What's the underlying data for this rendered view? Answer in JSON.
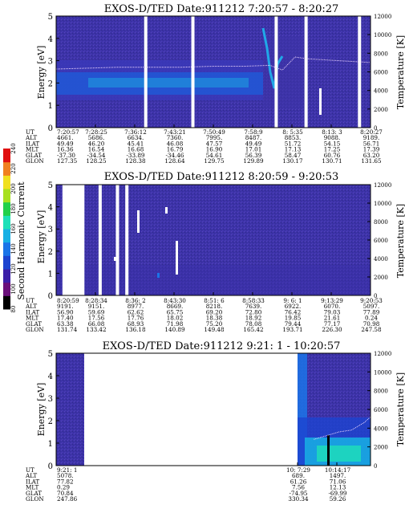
{
  "chart_data": [
    {
      "type": "heatmap",
      "title": "EXOS-D/TED   Date:911212  7:20:57 - 8:20:27",
      "ylabel": "Energy [eV]",
      "y2label": "Temperature [K]",
      "ylim": [
        0,
        5
      ],
      "y2lim": [
        0,
        12000
      ],
      "y_ticks": [
        "0",
        "1",
        "2",
        "3",
        "4",
        "5"
      ],
      "y2_ticks": [
        "0",
        "2000",
        "4000",
        "6000",
        "8000",
        "10000",
        "12000"
      ],
      "x_ticks": [
        "7:20:57",
        "7:28:25",
        "7:36:12",
        "7:43:21",
        "7:50:49",
        "7:58:9",
        "8: 5:35",
        "8:13: 3",
        "8:20:27"
      ],
      "orbit_labels": [
        "UT",
        "ALT",
        "ILAT",
        "MLT",
        "GLAT",
        "GLON"
      ],
      "orbit_columns": [
        [
          "7:20:57",
          "4661.",
          "49.49",
          "16.36",
          "-37.30",
          "127.35"
        ],
        [
          "7:28:25",
          "5686.",
          "46.20",
          "16.54",
          "-34.54",
          "128.25"
        ],
        [
          "7:36:12",
          "6634.",
          "45.41",
          "16.68",
          "-33.89",
          "128.38"
        ],
        [
          "7:43:21",
          "7360.",
          "46.08",
          "16.79",
          "-34.46",
          "128.64"
        ],
        [
          "7:50:49",
          "7995.",
          "47.57",
          "16.90",
          "54.61",
          "129.75"
        ],
        [
          "7:58:9",
          "8487.",
          "49.49",
          "17.01",
          "56.39",
          "129.89"
        ],
        [
          "8: 5:35",
          "8853.",
          "51.72",
          "17.13",
          "58.47",
          "130.17"
        ],
        [
          "8:13: 3",
          "9088.",
          "54.15",
          "17.25",
          "60.76",
          "130.71"
        ],
        [
          "8:20:27",
          "9189.",
          "56.71",
          "17.39",
          "63.20",
          "131.65"
        ]
      ],
      "data_gaps": [
        0.285,
        0.435,
        0.7,
        0.795,
        0.965
      ],
      "temperature_trace": {
        "x": [
          0.0,
          0.1,
          0.2,
          0.3,
          0.4,
          0.5,
          0.6,
          0.68,
          0.72,
          0.76,
          0.8,
          0.9,
          1.0
        ],
        "y": [
          6300,
          6400,
          6500,
          6500,
          6500,
          6600,
          6600,
          6700,
          6200,
          7600,
          7400,
          7200,
          7000
        ]
      }
    },
    {
      "type": "heatmap",
      "title": "EXOS-D/TED   Date:911212  8:20:59 - 9:20:53",
      "ylabel": "Energy [eV]",
      "y2label": "Temperature [K]",
      "ylim": [
        0,
        5
      ],
      "y2lim": [
        0,
        12000
      ],
      "y_ticks": [
        "0",
        "1",
        "2",
        "3",
        "4",
        "5"
      ],
      "y2_ticks": [
        "0",
        "2000",
        "4000",
        "6000",
        "8000",
        "10000",
        "12000"
      ],
      "x_ticks": [
        "8:20:59",
        "8:28:34",
        "8:36: 2",
        "8:43:30",
        "8:51: 6",
        "8:58:33",
        "9: 6: 1",
        "9:13:29",
        "9:20:53"
      ],
      "orbit_labels": [
        "UT",
        "ALT",
        "ILAT",
        "MLT",
        "GLAT",
        "GLON"
      ],
      "orbit_columns": [
        [
          "8:20:59",
          "9191.",
          "56.90",
          "17.40",
          "63.38",
          "131.74"
        ],
        [
          "8:28:34",
          "9151.",
          "59.69",
          "17.56",
          "66.08",
          "133.42"
        ],
        [
          "8:36: 2",
          "8977.",
          "62.62",
          "17.76",
          "68.93",
          "136.18"
        ],
        [
          "8:43:30",
          "8669.",
          "65.75",
          "18.02",
          "71.98",
          "140.89"
        ],
        [
          "8:51: 6",
          "8218.",
          "69.20",
          "18.38",
          "75.20",
          "149.48"
        ],
        [
          "8:58:33",
          "7639.",
          "72.80",
          "18.92",
          "78.08",
          "165.42"
        ],
        [
          "9: 6: 1",
          "6922.",
          "76.42",
          "19.85",
          "79.44",
          "193.71"
        ],
        [
          "9:13:29",
          "6070.",
          "79.03",
          "21.61",
          "77.17",
          "226.30"
        ],
        [
          "9:20:53",
          "5097.",
          "77.89",
          "0.24",
          "70.98",
          "247.58"
        ]
      ],
      "data_gaps_wide": [
        [
          0.02,
          0.09
        ]
      ],
      "data_gaps": [
        0.14,
        0.195,
        0.225
      ]
    },
    {
      "type": "heatmap",
      "title": "EXOS-D/TED   Date:911212  9:21: 1 - 10:20:57",
      "ylabel": "Energy [eV]",
      "y2label": "Temperature [K]",
      "ylim": [
        0,
        5
      ],
      "y2lim": [
        0,
        12000
      ],
      "y_ticks": [
        "0",
        "1",
        "2",
        "3",
        "4",
        "5"
      ],
      "y2_ticks": [
        "0",
        "2000",
        "4000",
        "6000",
        "8000",
        "10000",
        "12000"
      ],
      "x_ticks": [
        "9:21: 1",
        "10: 7:29",
        "10:14:17"
      ],
      "orbit_labels": [
        "UT",
        "ALT",
        "ILAT",
        "MLT",
        "GLAT",
        "GLON"
      ],
      "orbit_columns": [
        [
          "9:21: 1",
          "5078.",
          "77.82",
          "0.29",
          "70.84",
          "247.86"
        ],
        [
          "10: 7:29",
          "689.",
          "61.26",
          "7.56",
          "-74.95",
          "330.34"
        ],
        [
          "10:14:17",
          "1497.",
          "71.06",
          "12.13",
          "-69.99",
          "59.26"
        ]
      ],
      "temperature_trace": {
        "x": [
          0.82,
          0.86,
          0.9,
          0.94,
          0.98,
          1.0
        ],
        "y": [
          2800,
          3200,
          3600,
          3800,
          4600,
          5200
        ]
      }
    }
  ],
  "colorbar": {
    "label": "Second Harmonic Current",
    "ticks": [
      "80",
      "100",
      "120",
      "140",
      "160",
      "180",
      "200",
      "220",
      "240"
    ],
    "colors": [
      "#000000",
      "#6a0f7a",
      "#3b1fa8",
      "#1d44d0",
      "#1b74e8",
      "#18b0e4",
      "#1ee0b8",
      "#22d04a",
      "#a8e020",
      "#f0e020",
      "#f08020",
      "#e01010"
    ]
  }
}
